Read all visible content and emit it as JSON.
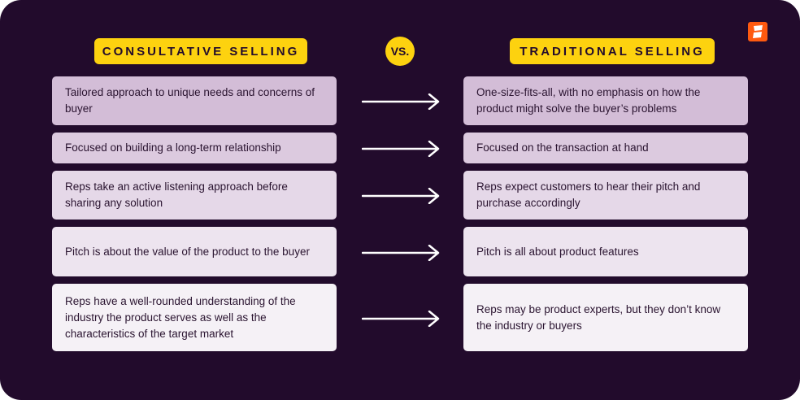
{
  "headers": {
    "left": "CONSULTATIVE SELLING",
    "vs": "VS.",
    "right": "TRADITIONAL SELLING"
  },
  "colors": {
    "background": "#220b2c",
    "accent": "#fdd20f",
    "logo": "#fe5a10"
  },
  "rows": [
    {
      "left": "Tailored approach to unique needs and concerns of buyer",
      "right": "One-size-fits-all, with no emphasis on how the product might solve the buyer’s problems",
      "color": "#d3bdd7"
    },
    {
      "left": "Focused on building a long-term relationship",
      "right": "Focused on the transaction at hand",
      "color": "#dccadf"
    },
    {
      "left": "Reps take an active listening approach before sharing any solution",
      "right": "Reps expect customers to hear their pitch and purchase accordingly",
      "color": "#e5d8e8"
    },
    {
      "left": "Pitch is about the value of the product to the buyer",
      "right": "Pitch is all about product features",
      "color": "#ede4ef"
    },
    {
      "left": "Reps have a well-rounded understanding of the industry the product serves as well as the characteristics of the target market",
      "right": "Reps may be product experts, but they don’t know the industry or buyers",
      "color": "#f5f1f6"
    }
  ]
}
